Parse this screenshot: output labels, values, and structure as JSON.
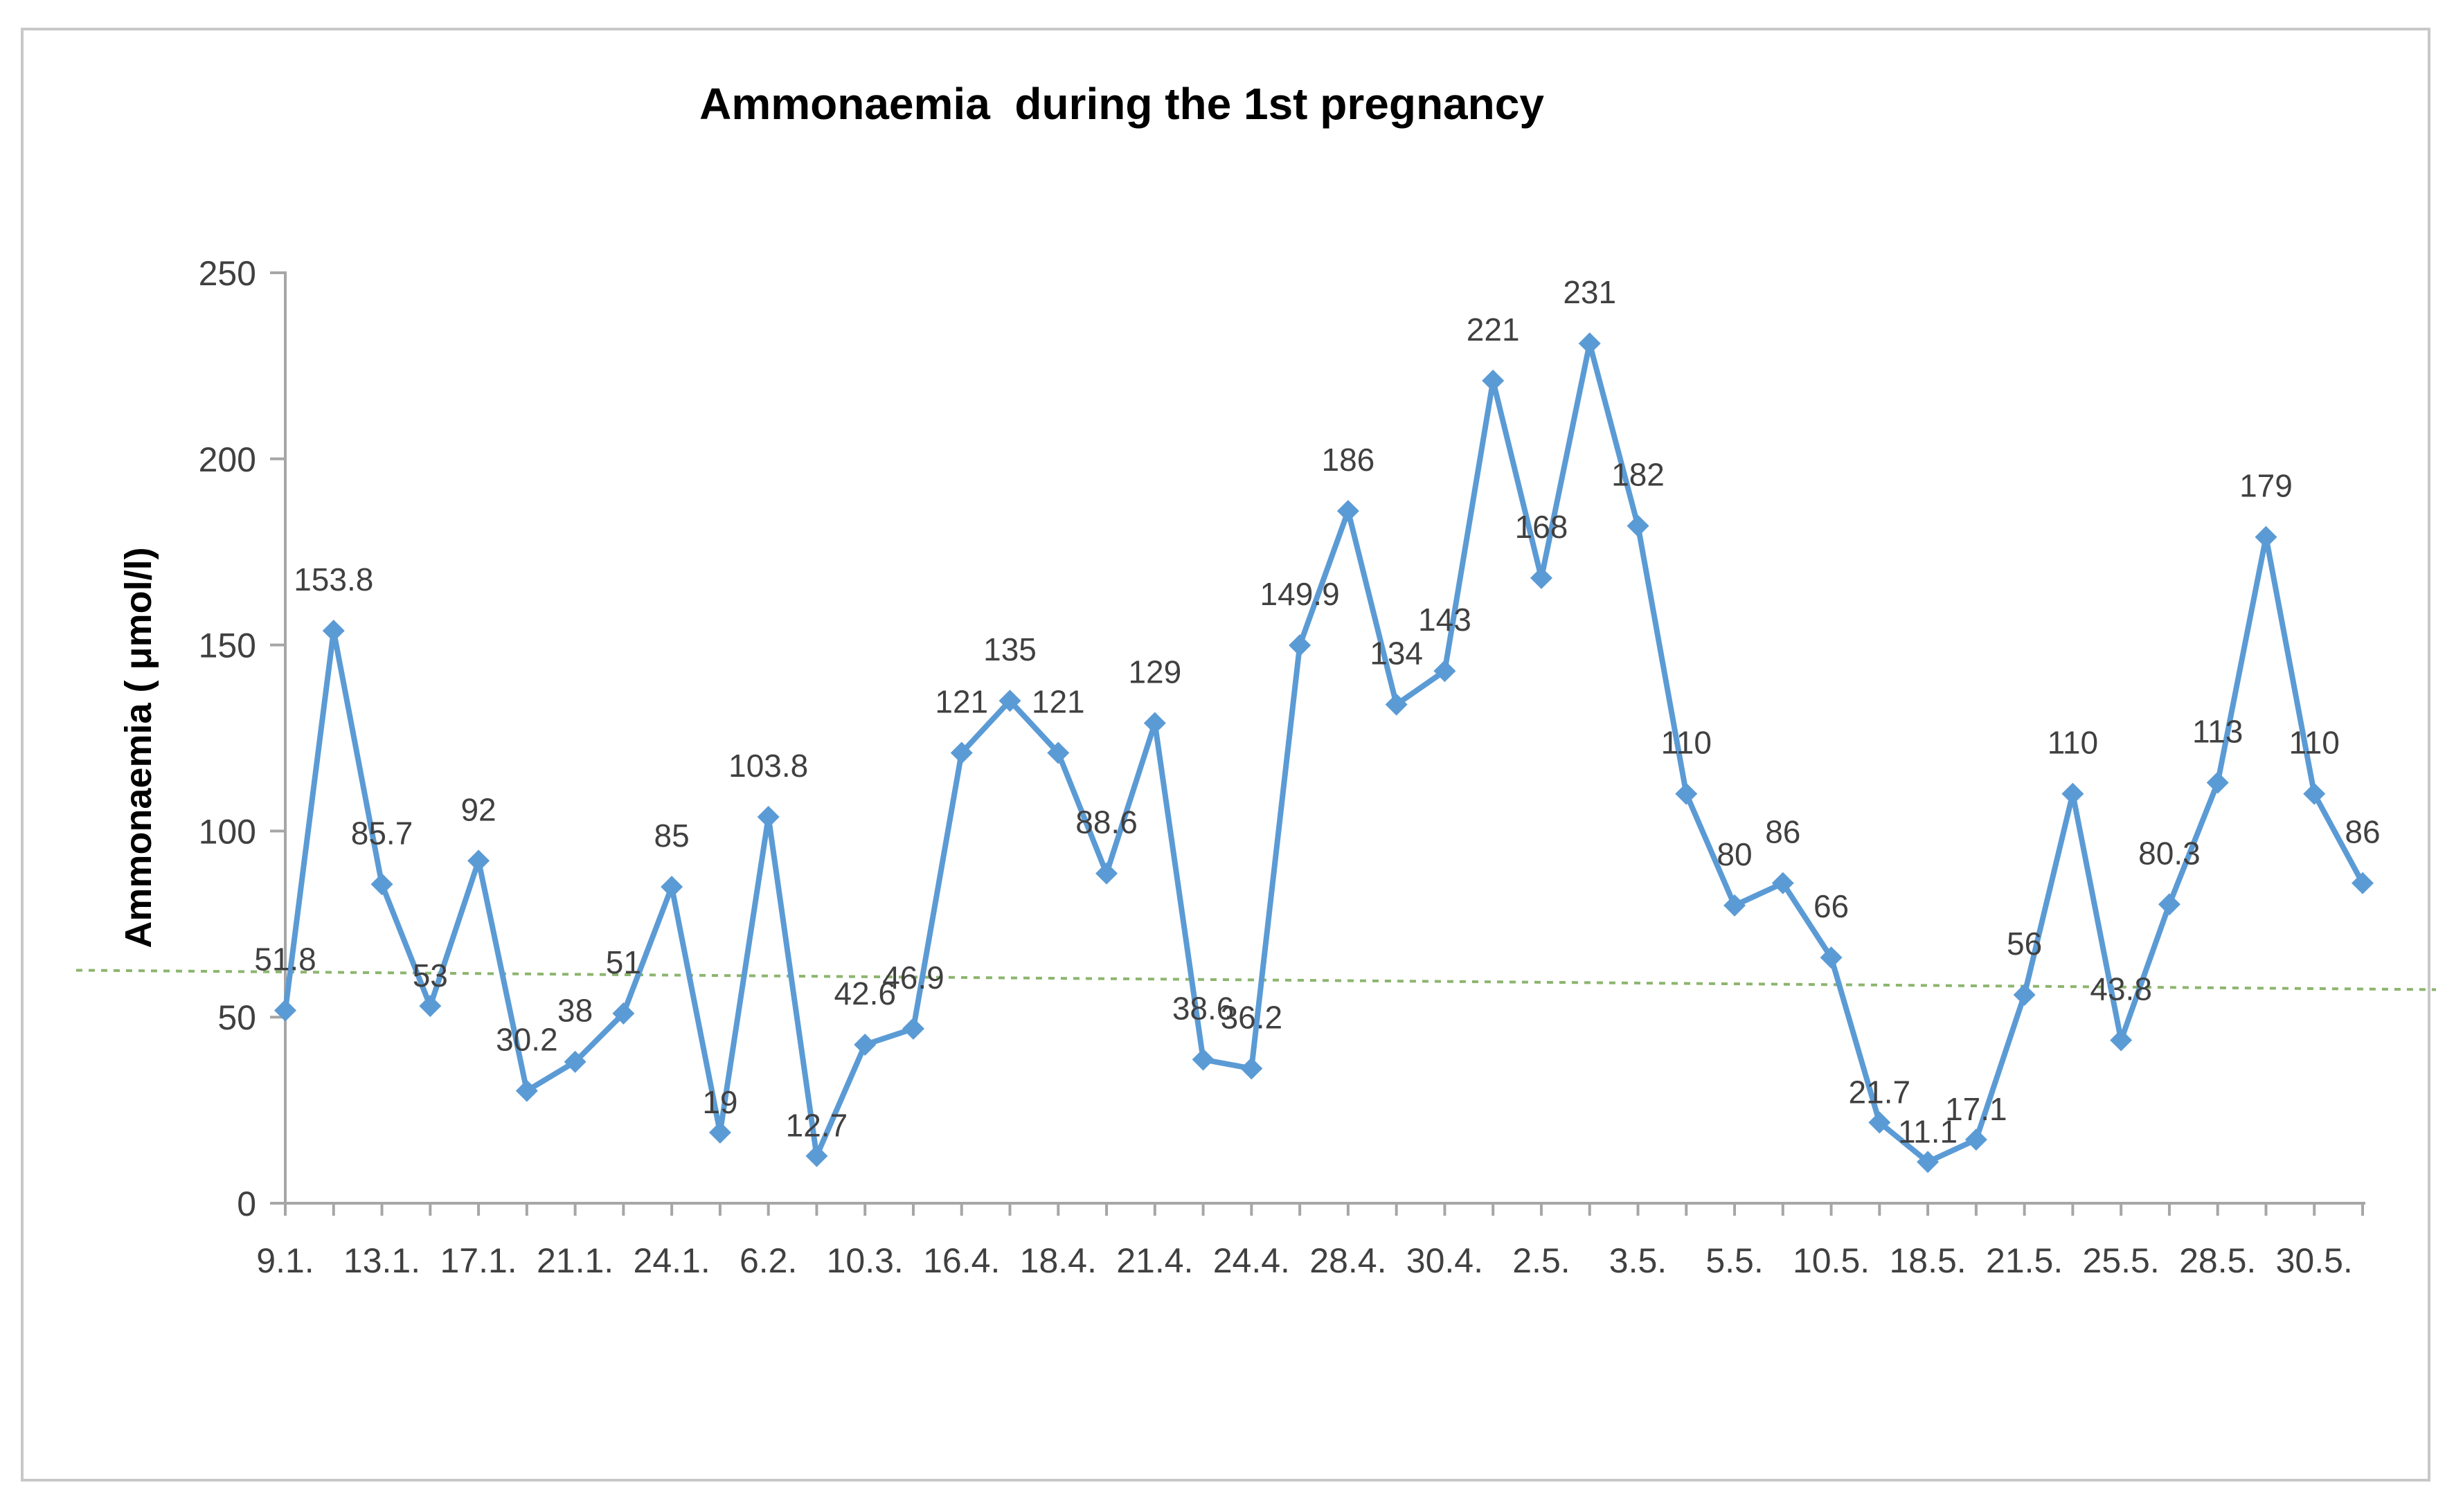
{
  "chart_data": {
    "type": "line",
    "title": "Ammonaemia  during the 1st pregnancy",
    "ylabel": "Ammonaemia ( μmol/l)",
    "xlabel": "",
    "ylim": [
      0,
      250
    ],
    "yticks": [
      0,
      50,
      100,
      150,
      200,
      250
    ],
    "reference_line": 60,
    "colors": {
      "line": "#5b9bd5",
      "reference": "#8cb56e",
      "axis": "#a6a6a6",
      "text": "#404040"
    },
    "values": [
      51.8,
      153.8,
      85.7,
      53,
      92,
      30.2,
      38,
      51,
      85,
      19,
      103.8,
      12.7,
      42.6,
      46.9,
      121,
      135,
      121,
      88.6,
      129,
      38.6,
      36.2,
      149.9,
      186,
      134,
      143,
      221,
      168,
      231,
      182,
      110,
      80,
      86,
      66,
      21.7,
      11.1,
      17.1,
      56,
      110,
      43.8,
      80.3,
      113,
      179,
      110,
      86
    ],
    "data_labels": [
      "51.8",
      "153.8",
      "85.7",
      "53",
      "92",
      "30.2",
      "38",
      "51",
      "85",
      "19",
      "103.8",
      "12.7",
      "42.6",
      "46.9",
      "121",
      "135",
      "121",
      "88.6",
      "129",
      "38.6",
      "36.2",
      "149.9",
      "186",
      "134",
      "143",
      "221",
      "168",
      "231",
      "182",
      "110",
      "80",
      "86",
      "66",
      "21.7",
      "11.1",
      "17.1",
      "56",
      "110",
      "43.8",
      "80.3",
      "113",
      "179",
      "110",
      "86"
    ],
    "category_labels": [
      "9.1.",
      "13.1.",
      "17.1.",
      "21.1.",
      "24.1.",
      "6.2.",
      "10.3.",
      "16.4.",
      "18.4.",
      "21.4.",
      "24.4.",
      "28.4.",
      "30.4.",
      "2.5.",
      "3.5.",
      "5.5.",
      "10.5.",
      "18.5.",
      "21.5.",
      "25.5.",
      "28.5.",
      "30.5."
    ]
  }
}
